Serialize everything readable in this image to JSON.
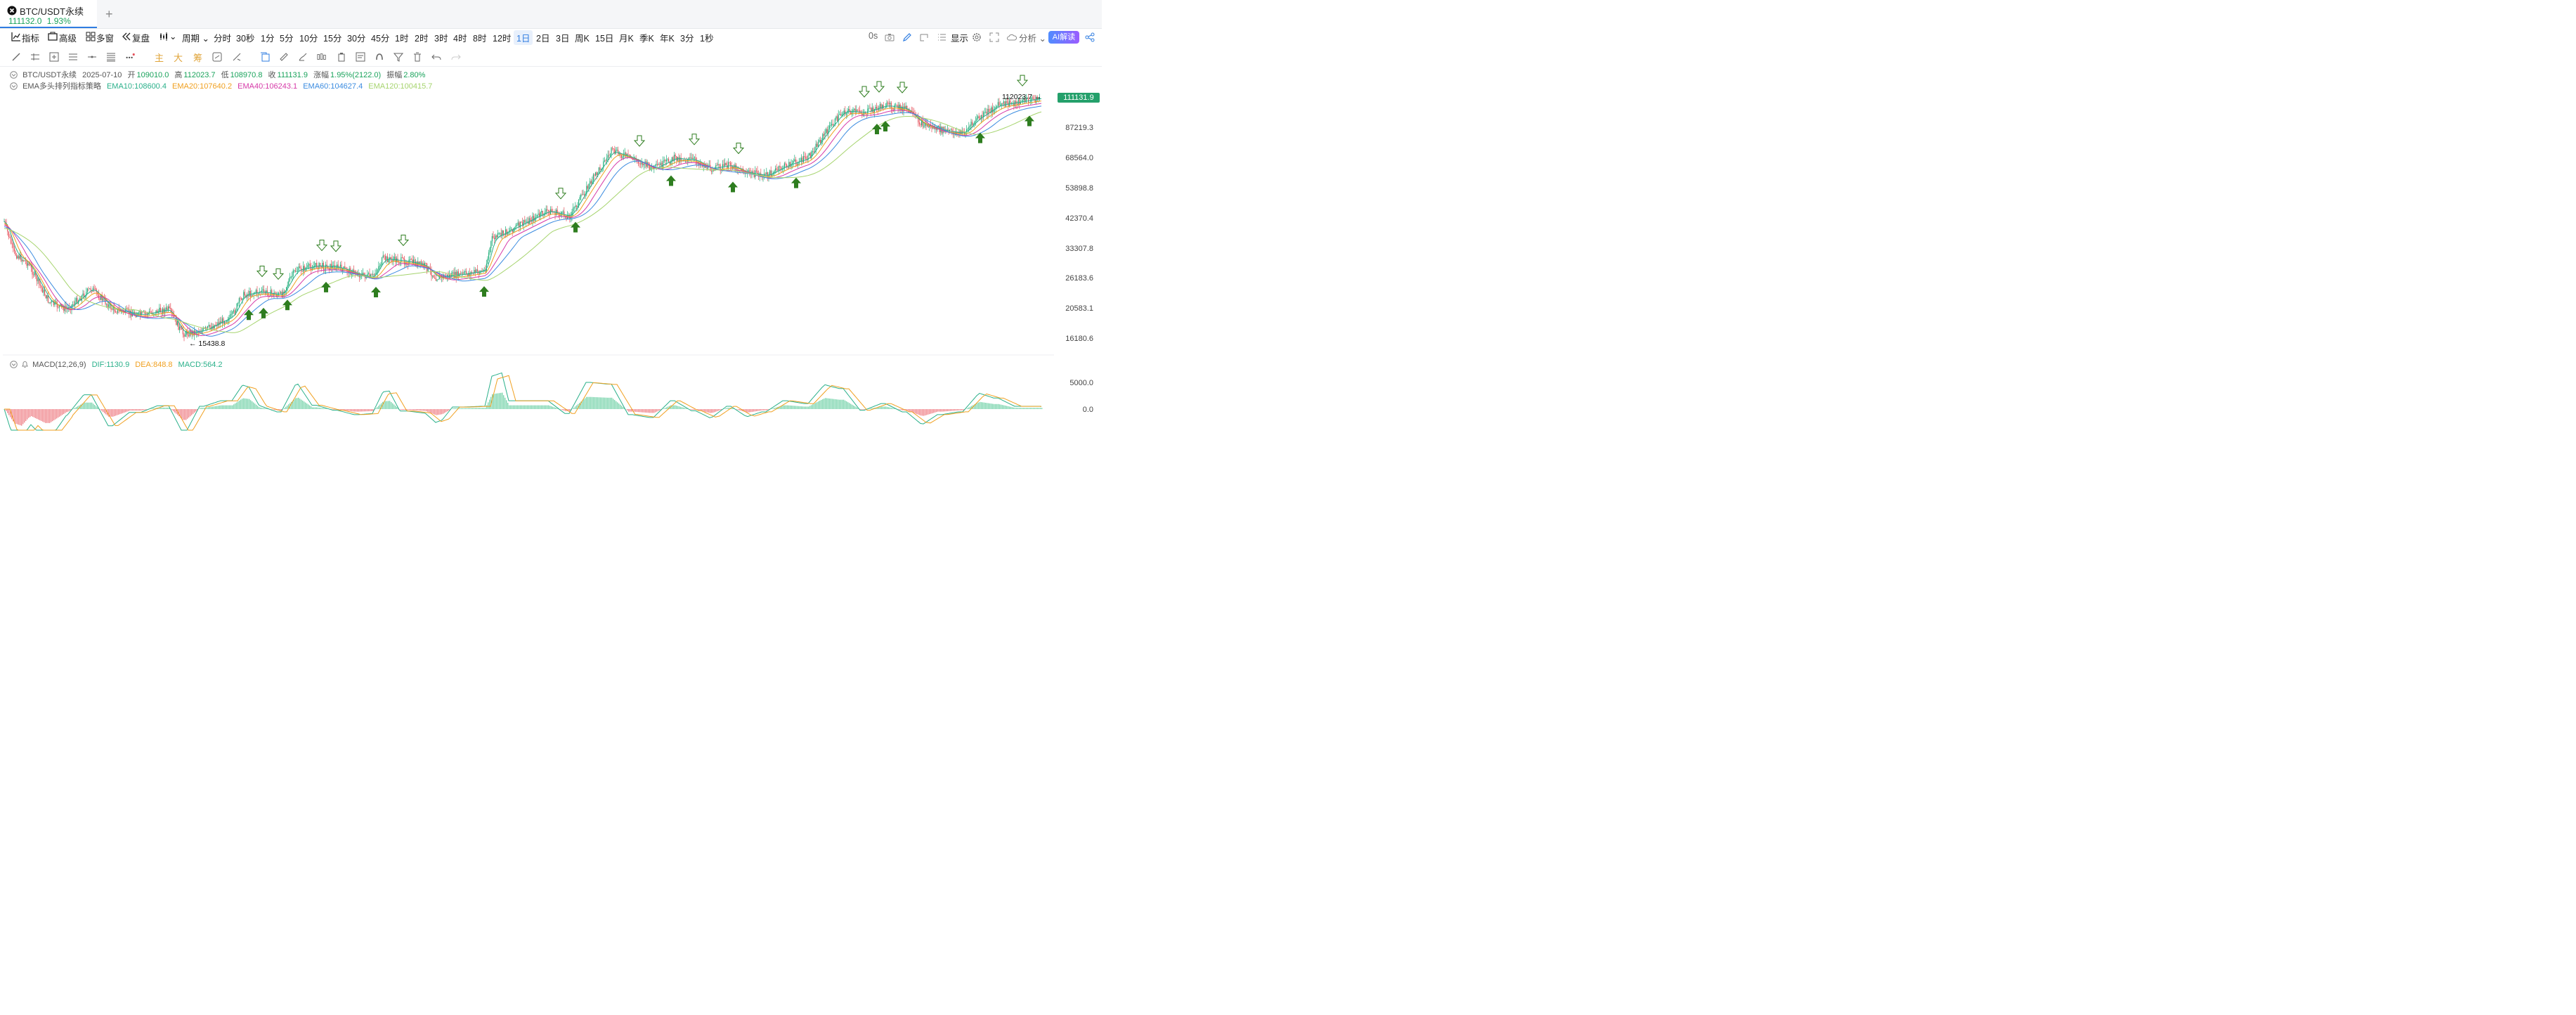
{
  "tab": {
    "title": "BTC/USDT永续",
    "price": "111132.0",
    "change": "1.93%"
  },
  "toolbar": {
    "items": [
      "指标",
      "高级",
      "多窗",
      "复盘",
      "",
      "周期"
    ],
    "periods": [
      "分时",
      "30秒",
      "1分",
      "5分",
      "10分",
      "15分",
      "30分",
      "45分",
      "1时",
      "2时",
      "3时",
      "4时",
      "8时",
      "12时",
      "1日",
      "2日",
      "3日",
      "周K",
      "15日",
      "月K",
      "季K",
      "年K",
      "3分",
      "1秒"
    ],
    "selected_period": "1日",
    "countdown": "0s",
    "display": "显示",
    "analysis": "分析",
    "ai": "AI解读"
  },
  "drawbar": {
    "main": "主",
    "big": "大",
    "chip": "筹"
  },
  "ohlc": {
    "symbol": "BTC/USDT永续",
    "date": "2025-07-10",
    "open_label": "开",
    "open": "109010.0",
    "high_label": "高",
    "high": "112023.7",
    "low_label": "低",
    "low": "108970.8",
    "close_label": "收",
    "close": "111131.9",
    "chg_label": "涨幅",
    "chg": "1.95%(2122.0)",
    "amp_label": "振幅",
    "amp": "2.80%"
  },
  "ema": {
    "name": "EMA多头排列指标策略",
    "lines": [
      {
        "label": "EMA10:108600.4",
        "color": "#2ab08a"
      },
      {
        "label": "EMA20:107640.2",
        "color": "#f0a020"
      },
      {
        "label": "EMA40:106243.1",
        "color": "#d63aa8"
      },
      {
        "label": "EMA60:104627.4",
        "color": "#3c8ce0"
      },
      {
        "label": "EMA120:100415.7",
        "color": "#a6d46e"
      }
    ]
  },
  "y_axis": [
    "87219.3",
    "68564.0",
    "53898.8",
    "42370.4",
    "33307.8",
    "26183.6",
    "20583.1",
    "16180.6"
  ],
  "current_price": "111131.9",
  "high_marker": "112023.7 →",
  "low_marker": "← 15438.8",
  "macd": {
    "name": "MACD(12,26,9)",
    "dif": "DIF:1130.9",
    "dea": "DEA:848.8",
    "hist": "MACD:564.2",
    "axis": [
      "5000.0",
      "0.0"
    ]
  },
  "colors": {
    "up": "#1fae7a",
    "down": "#e5525c",
    "arrow": "#2e7d1f",
    "accent": "#2f7de1"
  }
}
